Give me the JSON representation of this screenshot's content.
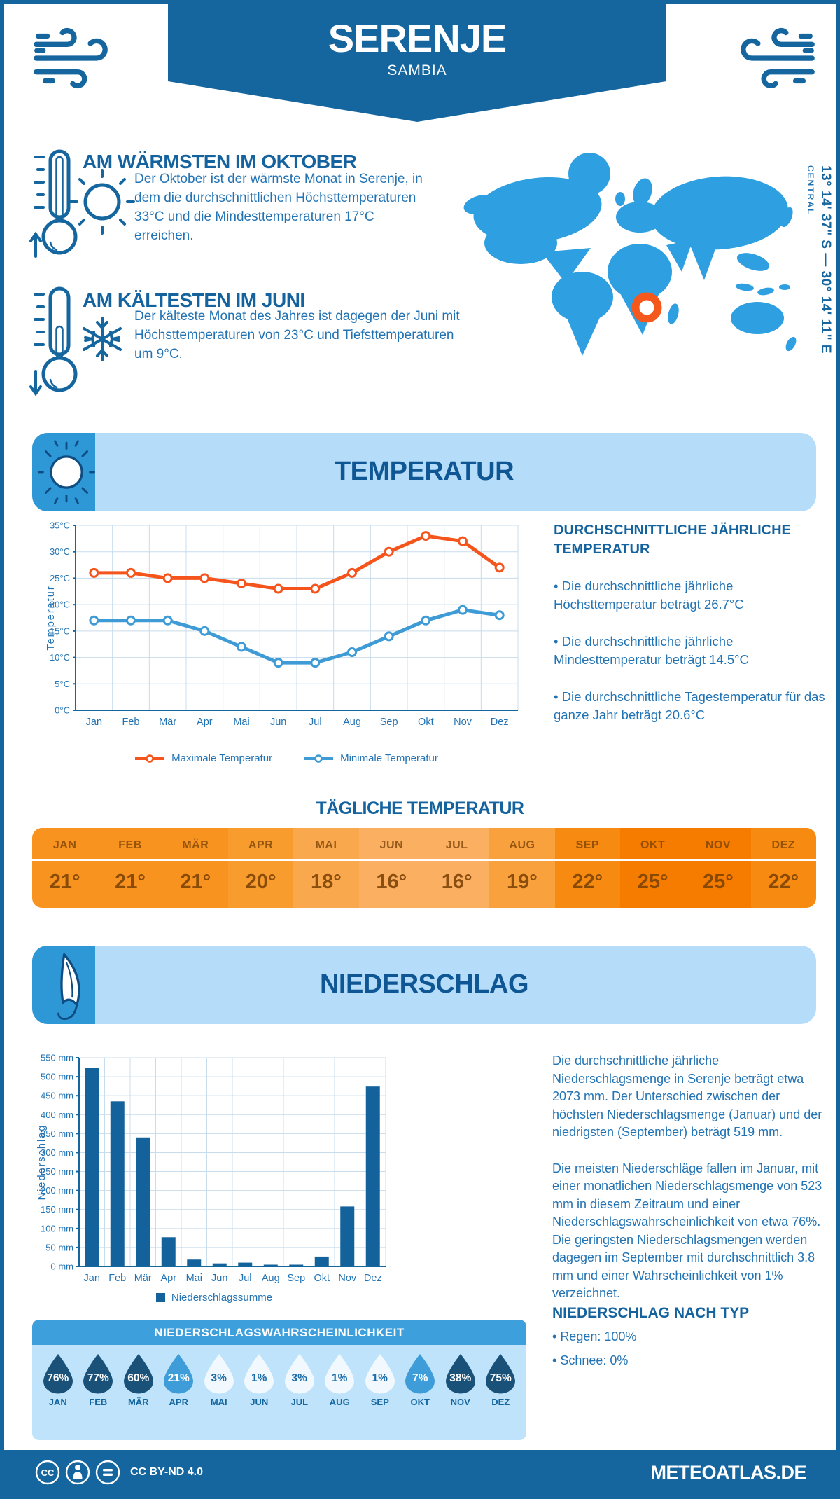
{
  "header": {
    "title": "SERENJE",
    "subtitle": "SAMBIA",
    "coordinates": "13° 14' 37\" S — 30° 14' 11\" E",
    "region": "CENTRAL"
  },
  "warmest": {
    "heading": "AM WÄRMSTEN IM OKTOBER",
    "text": "Der Oktober ist der wärmste Monat in Serenje, in dem die durchschnittlichen Höchsttemperaturen 33°C und die Mindesttemperaturen 17°C erreichen."
  },
  "coldest": {
    "heading": "AM KÄLTESTEN IM JUNI",
    "text": "Der kälteste Monat des Jahres ist dagegen der Juni mit Höchsttemperaturen von 23°C und Tiefsttemperaturen um 9°C."
  },
  "temperature_section": {
    "title": "TEMPERATUR",
    "facts_heading": "DURCHSCHNITTLICHE JÄHRLICHE TEMPERATUR",
    "facts": [
      "Die durchschnittliche jährliche Höchsttemperatur beträgt 26.7°C",
      "Die durchschnittliche jährliche Mindesttemperatur beträgt 14.5°C",
      "Die durchschnittliche Tagestemperatur für das ganze Jahr beträgt 20.6°C"
    ]
  },
  "daily": {
    "heading": "TÄGLICHE TEMPERATUR",
    "months": [
      "JAN",
      "FEB",
      "MÄR",
      "APR",
      "MAI",
      "JUN",
      "JUL",
      "AUG",
      "SEP",
      "OKT",
      "NOV",
      "DEZ"
    ],
    "values": [
      "21°",
      "21°",
      "21°",
      "20°",
      "18°",
      "16°",
      "16°",
      "19°",
      "22°",
      "25°",
      "25°",
      "22°"
    ],
    "cell_colors": [
      "#F8931F",
      "#F8931F",
      "#F8931F",
      "#F99C2E",
      "#FAA84E",
      "#FBAF60",
      "#FBAF60",
      "#F9A13D",
      "#F78A10",
      "#F67C00",
      "#F67C00",
      "#F78A10"
    ]
  },
  "precipitation_section": {
    "title": "NIEDERSCHLAG",
    "paragraph1": "Die durchschnittliche jährliche Niederschlagsmenge in Serenje beträgt etwa 2073 mm. Der Unterschied zwischen der höchsten Niederschlagsmenge (Januar) und der niedrigsten (September) beträgt 519 mm.",
    "paragraph2": "Die meisten Niederschläge fallen im Januar, mit einer monatlichen Niederschlagsmenge von 523 mm in diesem Zeitraum und einer Niederschlagswahrscheinlichkeit von etwa 76%. Die geringsten Niederschlagsmengen werden dagegen im September mit durchschnittlich 3.8 mm und einer Wahrscheinlichkeit von 1% verzeichnet.",
    "type_heading": "NIEDERSCHLAG NACH TYP",
    "types": [
      "Regen: 100%",
      "Schnee: 0%"
    ],
    "legend": "Niederschlagssumme"
  },
  "probability": {
    "heading": "NIEDERSCHLAGSWAHRSCHEINLICHKEIT",
    "months": [
      "JAN",
      "FEB",
      "MÄR",
      "APR",
      "MAI",
      "JUN",
      "JUL",
      "AUG",
      "SEP",
      "OKT",
      "NOV",
      "DEZ"
    ],
    "values": [
      "76%",
      "77%",
      "60%",
      "21%",
      "3%",
      "1%",
      "3%",
      "1%",
      "1%",
      "7%",
      "38%",
      "75%"
    ],
    "levels": [
      "dark",
      "dark",
      "dark",
      "mid",
      "light",
      "light",
      "light",
      "light",
      "light",
      "mid",
      "dark",
      "dark"
    ],
    "colors": {
      "dark": "#1A5178",
      "mid": "#3E9CD8",
      "light": "#F2F9FE"
    },
    "text_colors": {
      "dark": "#FFFFFF",
      "mid": "#FFFFFF",
      "light": "#1A6CA8"
    }
  },
  "footer": {
    "license": "CC BY-ND 4.0",
    "site": "METEOATLAS.DE"
  },
  "colors": {
    "brand": "#15669F",
    "panel_light": "#B5DCF8",
    "panel_cap": "#2E97D6",
    "map_blue": "#2E9FE0",
    "marker_orange": "#F4581D",
    "grid": "#C7DCEC"
  },
  "chart_data": [
    {
      "type": "line",
      "categories": [
        "Jan",
        "Feb",
        "Mär",
        "Apr",
        "Mai",
        "Jun",
        "Jul",
        "Aug",
        "Sep",
        "Okt",
        "Nov",
        "Dez"
      ],
      "series": [
        {
          "name": "Maximale Temperatur",
          "color": "#F5551D",
          "values": [
            26,
            26,
            25,
            25,
            24,
            23,
            23,
            26,
            30,
            33,
            32,
            27
          ]
        },
        {
          "name": "Minimale Temperatur",
          "color": "#3E9BD6",
          "values": [
            17,
            17,
            17,
            15,
            12,
            9,
            9,
            11,
            14,
            17,
            19,
            18
          ]
        }
      ],
      "ylabel": "Temperatur",
      "ylim": [
        0,
        35
      ],
      "ytick_step": 5,
      "ytick_suffix": "°C",
      "grid": true,
      "legend_position": "bottom"
    },
    {
      "type": "bar",
      "categories": [
        "Jan",
        "Feb",
        "Mär",
        "Apr",
        "Mai",
        "Jun",
        "Jul",
        "Aug",
        "Sep",
        "Okt",
        "Nov",
        "Dez"
      ],
      "values": [
        523,
        435,
        340,
        77,
        18,
        8,
        10,
        4,
        3.8,
        26,
        158,
        474
      ],
      "ylabel": "Niederschlag",
      "ylim": [
        0,
        550
      ],
      "ytick_step": 50,
      "ytick_suffix": " mm",
      "bar_color": "#14629C",
      "legend": "Niederschlagssumme",
      "grid": true
    }
  ]
}
